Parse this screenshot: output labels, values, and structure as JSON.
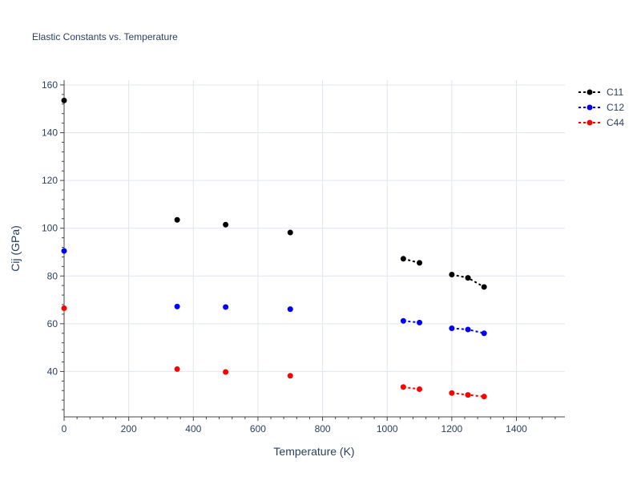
{
  "chart_data": {
    "type": "scatter",
    "title": "Elastic Constants vs. Temperature",
    "xlabel": "Temperature (K)",
    "ylabel": "Cij (GPa)",
    "xlim": [
      0,
      1550
    ],
    "ylim": [
      21,
      162
    ],
    "xticks": [
      0,
      200,
      400,
      600,
      800,
      1000,
      1200,
      1400
    ],
    "yticks": [
      40,
      60,
      80,
      100,
      120,
      140,
      160
    ],
    "grid": true,
    "legend_position": "top-right",
    "series": [
      {
        "name": "C11",
        "color": "#000000",
        "points": [
          {
            "x": 0,
            "y": 153.5,
            "segment": 0
          },
          {
            "x": 350,
            "y": 103.5,
            "segment": 1
          },
          {
            "x": 500,
            "y": 101.5,
            "segment": 2
          },
          {
            "x": 700,
            "y": 98.2,
            "segment": 3
          },
          {
            "x": 1050,
            "y": 87.2,
            "segment": 4
          },
          {
            "x": 1100,
            "y": 85.5,
            "segment": 4
          },
          {
            "x": 1200,
            "y": 80.6,
            "segment": 5
          },
          {
            "x": 1250,
            "y": 79.2,
            "segment": 5
          },
          {
            "x": 1300,
            "y": 75.4,
            "segment": 5
          }
        ]
      },
      {
        "name": "C12",
        "color": "#0000ff",
        "points": [
          {
            "x": 0,
            "y": 90.5,
            "segment": 0
          },
          {
            "x": 350,
            "y": 67.2,
            "segment": 1
          },
          {
            "x": 500,
            "y": 67.0,
            "segment": 2
          },
          {
            "x": 700,
            "y": 66.1,
            "segment": 3
          },
          {
            "x": 1050,
            "y": 61.2,
            "segment": 4
          },
          {
            "x": 1100,
            "y": 60.5,
            "segment": 4
          },
          {
            "x": 1200,
            "y": 58.1,
            "segment": 5
          },
          {
            "x": 1250,
            "y": 57.6,
            "segment": 5
          },
          {
            "x": 1300,
            "y": 56.0,
            "segment": 5
          }
        ]
      },
      {
        "name": "C44",
        "color": "#ff0000",
        "points": [
          {
            "x": 0,
            "y": 66.5,
            "segment": 0
          },
          {
            "x": 350,
            "y": 41.0,
            "segment": 1
          },
          {
            "x": 500,
            "y": 39.8,
            "segment": 2
          },
          {
            "x": 700,
            "y": 38.2,
            "segment": 3
          },
          {
            "x": 1050,
            "y": 33.5,
            "segment": 4
          },
          {
            "x": 1100,
            "y": 32.6,
            "segment": 4
          },
          {
            "x": 1200,
            "y": 31.0,
            "segment": 5
          },
          {
            "x": 1250,
            "y": 30.2,
            "segment": 5
          },
          {
            "x": 1300,
            "y": 29.5,
            "segment": 5
          }
        ]
      }
    ]
  }
}
